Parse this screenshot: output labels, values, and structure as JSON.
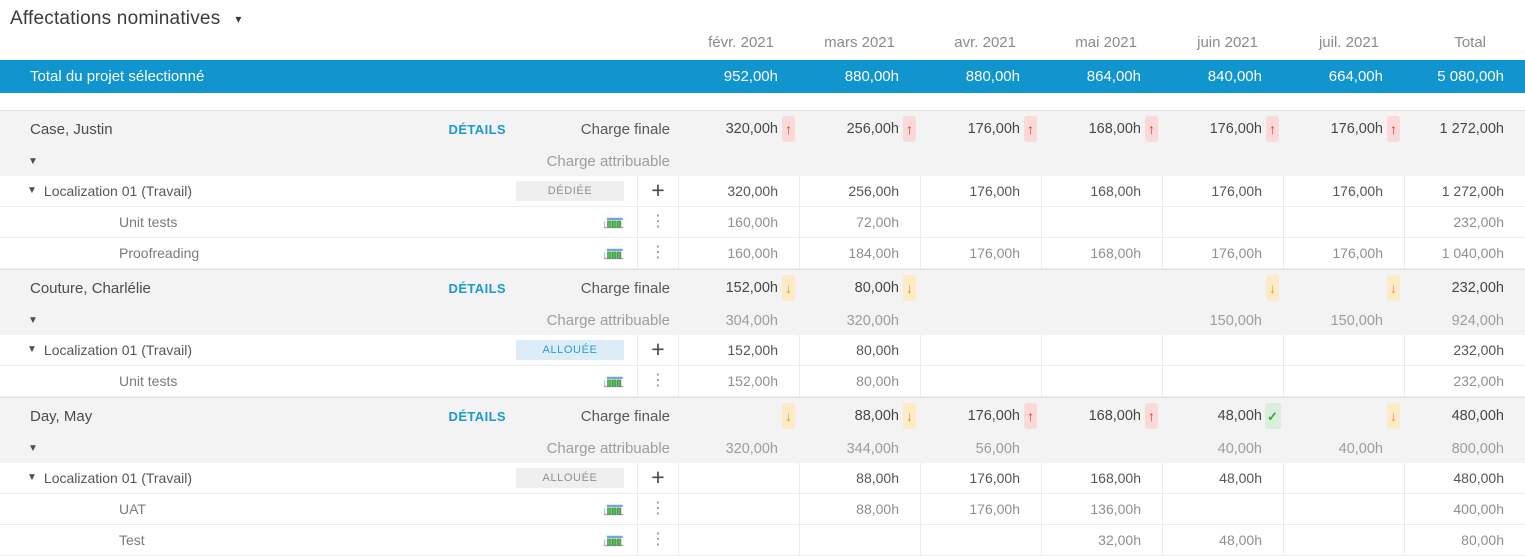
{
  "header": {
    "title": "Affectations nominatives",
    "months": [
      "févr. 2021",
      "mars 2021",
      "avr. 2021",
      "mai 2021",
      "juin 2021",
      "juil. 2021",
      "Total"
    ]
  },
  "total_row": {
    "label": "Total du projet sélectionné",
    "values": [
      "952,00h",
      "880,00h",
      "880,00h",
      "864,00h",
      "840,00h",
      "664,00h",
      "5 080,00h"
    ]
  },
  "labels": {
    "details": "DÉTAILS",
    "charge_finale": "Charge finale",
    "charge_attribuable": "Charge attribuable"
  },
  "icons": {
    "dropdown-caret": "▾",
    "collapse-triangle": "▼",
    "add": "+",
    "kebab-menu": "⋮",
    "trend-up": "↑",
    "trend-down": "↓",
    "trend-ok": "✓"
  },
  "colors": {
    "accent_blue": "#1095cf",
    "link_blue": "#1d97d4",
    "badge_blue_bg": "#dcedf8",
    "badge_blue_text": "#2b9cd8",
    "trend_up_red": "#e3342b",
    "trend_down_orange": "#f7941d",
    "trend_ok_green": "#3da04c"
  },
  "people": [
    {
      "name": "Case, Justin",
      "charge_finale": [
        {
          "value": "320,00h",
          "arrow": "up"
        },
        {
          "value": "256,00h",
          "arrow": "up"
        },
        {
          "value": "176,00h",
          "arrow": "up"
        },
        {
          "value": "168,00h",
          "arrow": "up"
        },
        {
          "value": "176,00h",
          "arrow": "up"
        },
        {
          "value": "176,00h",
          "arrow": "up"
        },
        {
          "value": "1 272,00h",
          "arrow": null
        }
      ],
      "charge_attribuable": [
        "",
        "",
        "",
        "",
        "",
        "",
        ""
      ],
      "assignments": [
        {
          "label": "Localization 01 (Travail)",
          "badge": {
            "text": "DÉDIÉE",
            "style": "gray"
          },
          "values": [
            "320,00h",
            "256,00h",
            "176,00h",
            "168,00h",
            "176,00h",
            "176,00h",
            "1 272,00h"
          ],
          "tasks": [
            {
              "label": "Unit tests",
              "values": [
                "160,00h",
                "72,00h",
                "",
                "",
                "",
                "",
                "232,00h"
              ]
            },
            {
              "label": "Proofreading",
              "values": [
                "160,00h",
                "184,00h",
                "176,00h",
                "168,00h",
                "176,00h",
                "176,00h",
                "1 040,00h"
              ]
            }
          ]
        }
      ]
    },
    {
      "name": "Couture, Charlélie",
      "charge_finale": [
        {
          "value": "152,00h",
          "arrow": "down"
        },
        {
          "value": "80,00h",
          "arrow": "down"
        },
        {
          "value": "",
          "arrow": null
        },
        {
          "value": "",
          "arrow": null
        },
        {
          "value": "",
          "arrow": "down"
        },
        {
          "value": "",
          "arrow": "down"
        },
        {
          "value": "232,00h",
          "arrow": null
        }
      ],
      "charge_attribuable": [
        "304,00h",
        "320,00h",
        "",
        "",
        "150,00h",
        "150,00h",
        "924,00h"
      ],
      "assignments": [
        {
          "label": "Localization 01 (Travail)",
          "badge": {
            "text": "ALLOUÉE",
            "style": "blue"
          },
          "values": [
            "152,00h",
            "80,00h",
            "",
            "",
            "",
            "",
            "232,00h"
          ],
          "tasks": [
            {
              "label": "Unit tests",
              "values": [
                "152,00h",
                "80,00h",
                "",
                "",
                "",
                "",
                "232,00h"
              ]
            }
          ]
        }
      ]
    },
    {
      "name": "Day, May",
      "charge_finale": [
        {
          "value": "",
          "arrow": "down"
        },
        {
          "value": "88,00h",
          "arrow": "down"
        },
        {
          "value": "176,00h",
          "arrow": "up"
        },
        {
          "value": "168,00h",
          "arrow": "up"
        },
        {
          "value": "48,00h",
          "arrow": "check"
        },
        {
          "value": "",
          "arrow": "down"
        },
        {
          "value": "480,00h",
          "arrow": null
        }
      ],
      "charge_attribuable": [
        "320,00h",
        "344,00h",
        "56,00h",
        "",
        "40,00h",
        "40,00h",
        "800,00h"
      ],
      "assignments": [
        {
          "label": "Localization 01 (Travail)",
          "badge": {
            "text": "ALLOUÉE",
            "style": "gray"
          },
          "values": [
            "",
            "88,00h",
            "176,00h",
            "168,00h",
            "48,00h",
            "",
            "480,00h"
          ],
          "tasks": [
            {
              "label": "UAT",
              "values": [
                "",
                "88,00h",
                "176,00h",
                "136,00h",
                "",
                "",
                "400,00h"
              ]
            },
            {
              "label": "Test",
              "values": [
                "",
                "",
                "",
                "32,00h",
                "48,00h",
                "",
                "80,00h"
              ]
            }
          ]
        }
      ]
    }
  ]
}
